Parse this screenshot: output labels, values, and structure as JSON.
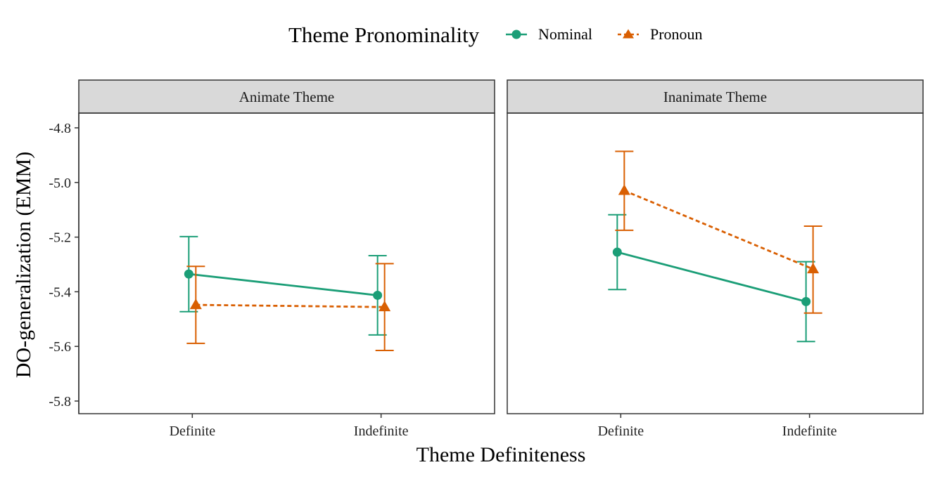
{
  "chart_data": {
    "type": "line",
    "xlabel": "Theme Definiteness",
    "ylabel": "DO-generalization (EMM)",
    "categories": [
      "Definite",
      "Indefinite"
    ],
    "ylim": [
      -5.85,
      -4.7
    ],
    "yticks": [
      -4.8,
      -5.0,
      -5.2,
      -5.4,
      -5.6,
      -5.8
    ],
    "ytick_labels": [
      "-4.8",
      "-5.0",
      "-5.2",
      "-5.4",
      "-5.6",
      "-5.8"
    ],
    "grid": false,
    "legend": {
      "title": "Theme Pronominality",
      "position": "top",
      "entries": [
        {
          "name": "Nominal",
          "color": "#1b9e77",
          "marker": "circle",
          "linestyle": "solid"
        },
        {
          "name": "Pronoun",
          "color": "#d95f02",
          "marker": "triangle",
          "linestyle": "dashed"
        }
      ]
    },
    "panels": [
      {
        "strip": "Animate Theme",
        "series": [
          {
            "name": "Nominal",
            "values": [
              -5.335,
              -5.413
            ],
            "lower": [
              -5.473,
              -5.558
            ],
            "upper": [
              -5.198,
              -5.268
            ]
          },
          {
            "name": "Pronoun",
            "values": [
              -5.448,
              -5.456
            ],
            "lower": [
              -5.589,
              -5.615
            ],
            "upper": [
              -5.307,
              -5.297
            ]
          }
        ]
      },
      {
        "strip": "Inanimate Theme",
        "series": [
          {
            "name": "Nominal",
            "values": [
              -5.255,
              -5.436
            ],
            "lower": [
              -5.392,
              -5.582
            ],
            "upper": [
              -5.118,
              -5.29
            ]
          },
          {
            "name": "Pronoun",
            "values": [
              -5.03,
              -5.317
            ],
            "lower": [
              -5.175,
              -5.478
            ],
            "upper": [
              -4.886,
              -5.16
            ]
          }
        ]
      }
    ]
  }
}
